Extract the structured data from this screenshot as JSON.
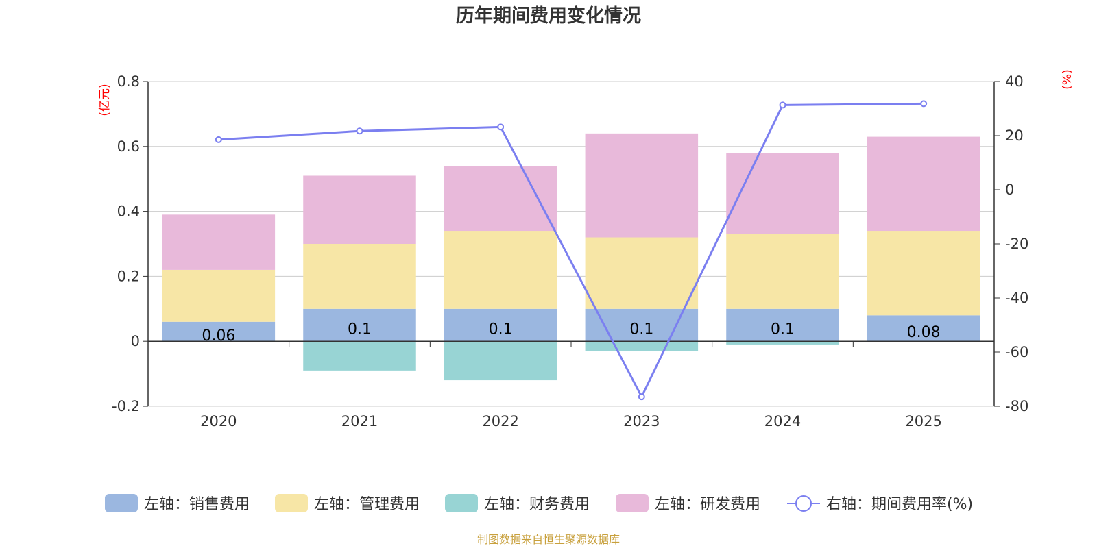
{
  "chart_data": {
    "type": "bar",
    "title": "历年期间费用变化情况",
    "categories": [
      "2020",
      "2021",
      "2022",
      "2023",
      "2024",
      "2025"
    ],
    "left_axis": {
      "unit": "(亿元)",
      "ylim": [
        -0.2,
        0.8
      ],
      "ticks": [
        "0.8",
        "0.6",
        "0.4",
        "0.2",
        "0",
        "-0.2"
      ]
    },
    "right_axis": {
      "unit": "(%)",
      "ylim": [
        -80,
        40
      ],
      "ticks": [
        "40",
        "20",
        "0",
        "-20",
        "-40",
        "-60",
        "-80"
      ]
    },
    "series": [
      {
        "name": "左轴：销售费用",
        "type": "bar",
        "axis": "left",
        "color": "#9bb7e0",
        "values": [
          0.06,
          0.1,
          0.1,
          0.1,
          0.1,
          0.08
        ],
        "labels": [
          "0.06",
          "0.1",
          "0.1",
          "0.1",
          "0.1",
          "0.08"
        ]
      },
      {
        "name": "左轴：管理费用",
        "type": "bar",
        "axis": "left",
        "color": "#f7e6a6",
        "values": [
          0.16,
          0.2,
          0.24,
          0.22,
          0.23,
          0.26
        ]
      },
      {
        "name": "左轴：财务费用",
        "type": "bar",
        "axis": "left",
        "color": "#98d4d4",
        "values": [
          0,
          -0.09,
          -0.12,
          -0.03,
          -0.01,
          0
        ]
      },
      {
        "name": "左轴：研发费用",
        "type": "bar",
        "axis": "left",
        "color": "#e8b9da",
        "values": [
          0.17,
          0.21,
          0.2,
          0.32,
          0.25,
          0.29
        ]
      },
      {
        "name": "右轴：期间费用率(%)",
        "type": "line",
        "axis": "right",
        "color": "#7b7ff0",
        "values": [
          18.5,
          21.7,
          23.2,
          -76.5,
          31.3,
          31.8
        ]
      }
    ]
  },
  "source": "制图数据来自恒生聚源数据库"
}
